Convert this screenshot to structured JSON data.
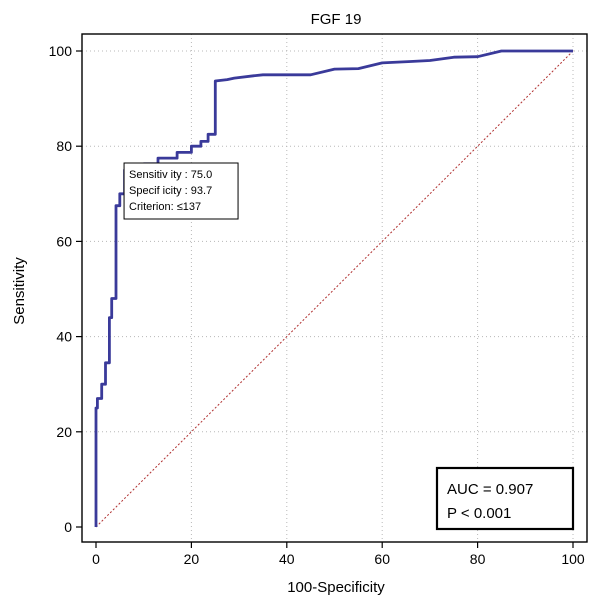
{
  "chart_data": {
    "type": "line",
    "title": "FGF 19",
    "xlabel": "100-Specificity",
    "ylabel": "Sensitivity",
    "xlim": [
      0,
      100
    ],
    "ylim": [
      0,
      100
    ],
    "xticks": [
      0,
      20,
      40,
      60,
      80,
      100
    ],
    "yticks": [
      0,
      20,
      40,
      60,
      80,
      100
    ],
    "grid": true,
    "colors": {
      "roc": "#3a3a9a",
      "reference": "#b03030",
      "grid": "#b8b8b8"
    },
    "series": [
      {
        "x": [
          0,
          0,
          0.3,
          0.3,
          1.2,
          1.2,
          2.0,
          2.0,
          2.8,
          2.8,
          3.3,
          3.3,
          4.2,
          4.2,
          5.0,
          5.0,
          6.0,
          6.0,
          10.0,
          10.0,
          13.0,
          13.0,
          17.0,
          17.0,
          20.0,
          20.0,
          22.0,
          22.0,
          23.5,
          23.5,
          25.0,
          25.0,
          27.5,
          29.0,
          33.0,
          35.0,
          45.0,
          50.0,
          55.0,
          60.0,
          66.0,
          70.0,
          75.0,
          80.0,
          85.0,
          100.0
        ],
        "y": [
          0,
          25.0,
          25.0,
          27.0,
          27.0,
          30.0,
          30.0,
          34.5,
          34.5,
          44.0,
          44.0,
          48.0,
          48.0,
          67.5,
          67.5,
          70.0,
          70.0,
          75.0,
          75.0,
          76.3,
          76.3,
          77.5,
          77.5,
          78.7,
          78.7,
          80.0,
          80.0,
          81.0,
          81.0,
          82.5,
          82.5,
          93.7,
          94.0,
          94.3,
          94.8,
          95.0,
          95.0,
          96.2,
          96.3,
          97.5,
          97.8,
          98.0,
          98.7,
          98.8,
          100.0,
          100.0
        ]
      },
      {
        "x": [
          0,
          100
        ],
        "y": [
          0,
          100
        ]
      }
    ],
    "tooltip": {
      "lines": [
        "Sensitiv ity : 75.0",
        "Specif icity : 93.7",
        "Criterion: ≤137"
      ],
      "x": 6.3,
      "y": 75.0
    },
    "stats_box": {
      "auc": "AUC = 0.907",
      "p": "P < 0.001"
    }
  }
}
